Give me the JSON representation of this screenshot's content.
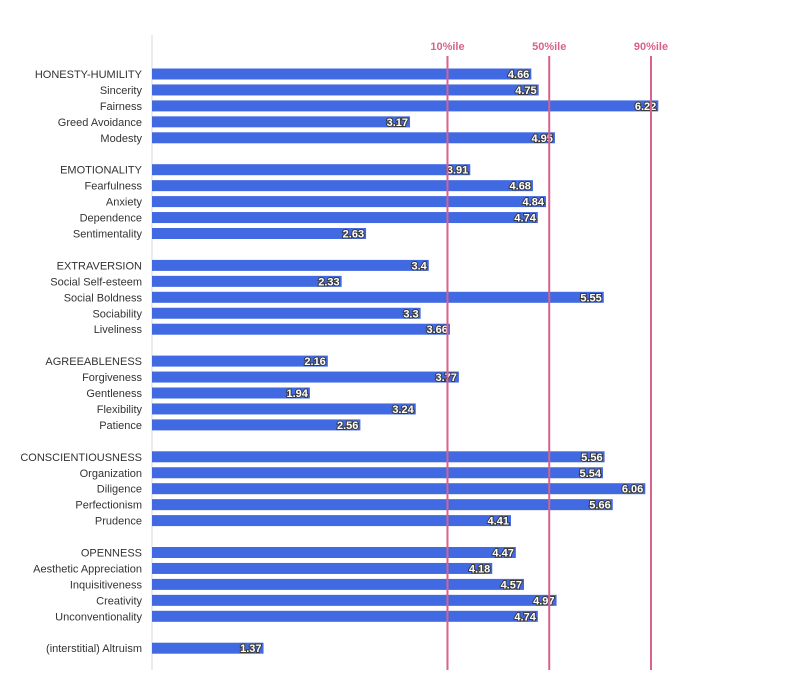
{
  "chart_data": {
    "type": "bar",
    "orientation": "horizontal",
    "title": "",
    "xlabel": "",
    "ylabel": "",
    "xlim": [
      0,
      7
    ],
    "grid": false,
    "categories": [
      "HONESTY-HUMILITY",
      "Sincerity",
      "Fairness",
      "Greed Avoidance",
      "Modesty",
      "",
      "EMOTIONALITY",
      "Fearfulness",
      "Anxiety",
      "Dependence",
      "Sentimentality",
      "",
      "EXTRAVERSION",
      "Social Self-esteem",
      "Social Boldness",
      "Sociability",
      "Liveliness",
      "",
      "AGREEABLENESS",
      "Forgiveness",
      "Gentleness",
      "Flexibility",
      "Patience",
      "",
      "CONSCIENTIOUSNESS",
      "Organization",
      "Diligence",
      "Perfectionism",
      "Prudence",
      "",
      "OPENNESS",
      "Aesthetic Appreciation",
      "Inquisitiveness",
      "Creativity",
      "Unconventionality",
      "",
      "(interstitial) Altruism"
    ],
    "values": [
      4.66,
      4.75,
      6.22,
      3.17,
      4.95,
      null,
      3.91,
      4.68,
      4.84,
      4.74,
      2.63,
      null,
      3.4,
      2.33,
      5.55,
      3.3,
      3.66,
      null,
      2.16,
      3.77,
      1.94,
      3.24,
      2.56,
      null,
      5.56,
      5.54,
      6.06,
      5.66,
      4.41,
      null,
      4.47,
      4.18,
      4.57,
      4.97,
      4.74,
      null,
      1.37
    ],
    "value_labels": [
      "4.66",
      "4.75",
      "6.22",
      "3.17",
      "4.95",
      "",
      "3.91",
      "4.68",
      "4.84",
      "4.74",
      "2.63",
      "",
      "3.4",
      "2.33",
      "5.55",
      "3.3",
      "3.66",
      "",
      "2.16",
      "3.77",
      "1.94",
      "3.24",
      "2.56",
      "",
      "5.56",
      "5.54",
      "6.06",
      "5.66",
      "4.41",
      "",
      "4.47",
      "4.18",
      "4.57",
      "4.97",
      "4.74",
      "",
      "1.37"
    ],
    "reference_lines": [
      {
        "label": "10%ile",
        "value": 3.63
      },
      {
        "label": "50%ile",
        "value": 4.88
      },
      {
        "label": "90%ile",
        "value": 6.13
      }
    ],
    "colors": {
      "bar": "#4169e1",
      "reference": "#d9618e",
      "axis": "#d9d9d9"
    }
  }
}
